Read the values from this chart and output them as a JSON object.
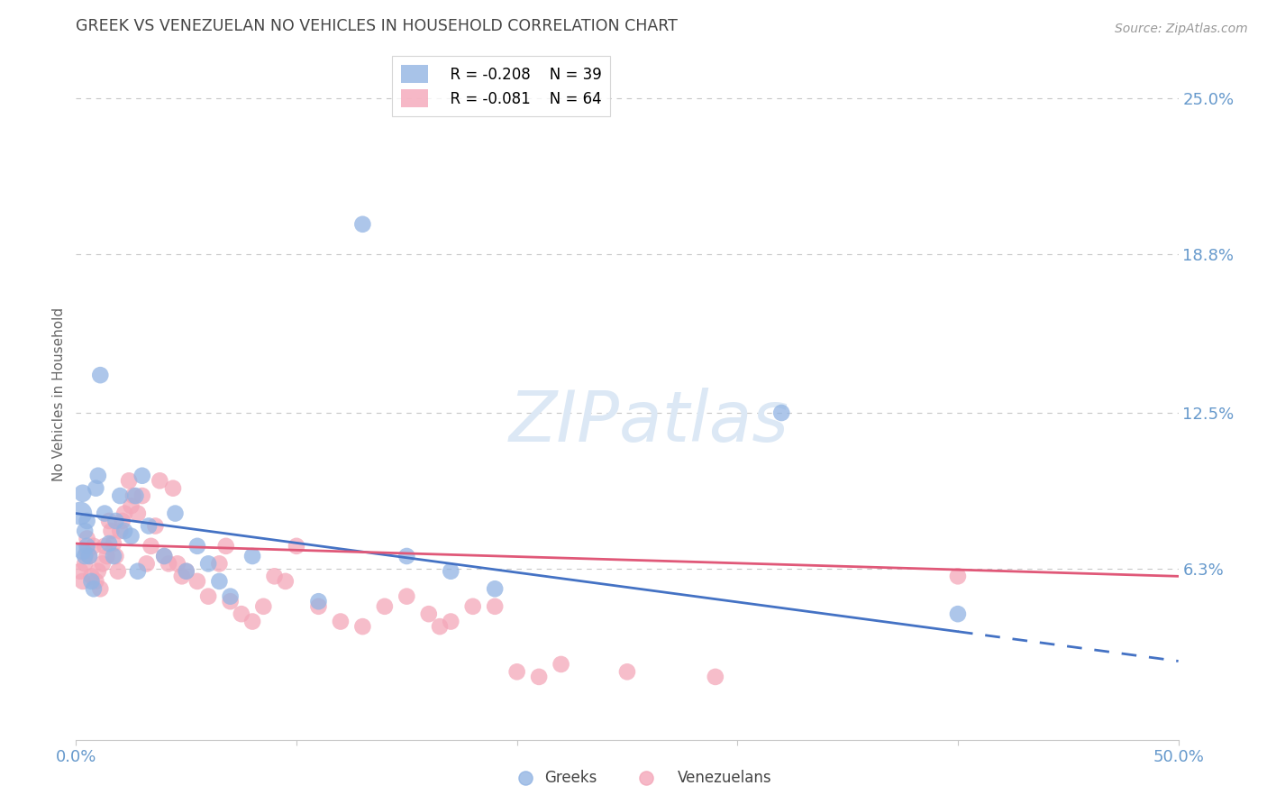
{
  "title": "GREEK VS VENEZUELAN NO VEHICLES IN HOUSEHOLD CORRELATION CHART",
  "source": "Source: ZipAtlas.com",
  "ylabel": "No Vehicles in Household",
  "xlim": [
    0.0,
    0.5
  ],
  "ylim": [
    -0.005,
    0.27
  ],
  "yticks": [
    0.0,
    0.063,
    0.125,
    0.188,
    0.25
  ],
  "ytick_labels": [
    "",
    "6.3%",
    "12.5%",
    "18.8%",
    "25.0%"
  ],
  "xtick_labels": [
    "0.0%",
    "",
    "",
    "",
    "",
    "50.0%"
  ],
  "greek_color": "#92b4e3",
  "venezuelan_color": "#f4a7b9",
  "greek_R": -0.208,
  "greek_N": 39,
  "venezuelan_R": -0.081,
  "venezuelan_N": 64,
  "legend_label_greek": "Greeks",
  "legend_label_venezuelan": "Venezuelans",
  "background_color": "#ffffff",
  "grid_color": "#c8c8c8",
  "tick_label_color": "#6699cc",
  "title_color": "#444444",
  "right_label_color": "#6699cc",
  "greek_x": [
    0.002,
    0.003,
    0.003,
    0.004,
    0.004,
    0.005,
    0.005,
    0.006,
    0.007,
    0.008,
    0.009,
    0.01,
    0.011,
    0.013,
    0.015,
    0.017,
    0.018,
    0.02,
    0.022,
    0.025,
    0.027,
    0.028,
    0.03,
    0.033,
    0.04,
    0.045,
    0.05,
    0.055,
    0.06,
    0.065,
    0.07,
    0.08,
    0.11,
    0.13,
    0.15,
    0.17,
    0.19,
    0.32,
    0.4
  ],
  "greek_y": [
    0.085,
    0.093,
    0.07,
    0.068,
    0.078,
    0.082,
    0.072,
    0.068,
    0.058,
    0.055,
    0.095,
    0.1,
    0.14,
    0.085,
    0.073,
    0.068,
    0.082,
    0.092,
    0.078,
    0.076,
    0.092,
    0.062,
    0.1,
    0.08,
    0.068,
    0.085,
    0.062,
    0.072,
    0.065,
    0.058,
    0.052,
    0.068,
    0.05,
    0.2,
    0.068,
    0.062,
    0.055,
    0.125,
    0.045
  ],
  "greek_sizes": [
    350,
    200,
    200,
    180,
    180,
    180,
    180,
    180,
    180,
    180,
    180,
    180,
    180,
    180,
    180,
    180,
    180,
    180,
    180,
    180,
    180,
    180,
    180,
    180,
    180,
    180,
    180,
    180,
    180,
    180,
    180,
    180,
    180,
    180,
    180,
    180,
    180,
    180,
    180
  ],
  "venezuelan_x": [
    0.002,
    0.003,
    0.004,
    0.005,
    0.005,
    0.006,
    0.007,
    0.008,
    0.009,
    0.01,
    0.011,
    0.012,
    0.013,
    0.014,
    0.015,
    0.016,
    0.017,
    0.018,
    0.019,
    0.02,
    0.021,
    0.022,
    0.024,
    0.025,
    0.026,
    0.028,
    0.03,
    0.032,
    0.034,
    0.036,
    0.038,
    0.04,
    0.042,
    0.044,
    0.046,
    0.048,
    0.05,
    0.055,
    0.06,
    0.065,
    0.068,
    0.07,
    0.075,
    0.08,
    0.085,
    0.09,
    0.095,
    0.1,
    0.11,
    0.12,
    0.13,
    0.14,
    0.15,
    0.16,
    0.165,
    0.17,
    0.18,
    0.19,
    0.2,
    0.21,
    0.22,
    0.25,
    0.29,
    0.4
  ],
  "venezuelan_y": [
    0.062,
    0.058,
    0.065,
    0.07,
    0.075,
    0.068,
    0.06,
    0.072,
    0.058,
    0.062,
    0.055,
    0.065,
    0.072,
    0.068,
    0.082,
    0.078,
    0.073,
    0.068,
    0.062,
    0.078,
    0.082,
    0.085,
    0.098,
    0.088,
    0.092,
    0.085,
    0.092,
    0.065,
    0.072,
    0.08,
    0.098,
    0.068,
    0.065,
    0.095,
    0.065,
    0.06,
    0.062,
    0.058,
    0.052,
    0.065,
    0.072,
    0.05,
    0.045,
    0.042,
    0.048,
    0.06,
    0.058,
    0.072,
    0.048,
    0.042,
    0.04,
    0.048,
    0.052,
    0.045,
    0.04,
    0.042,
    0.048,
    0.048,
    0.022,
    0.02,
    0.025,
    0.022,
    0.02,
    0.06
  ],
  "venezuelan_sizes": [
    180,
    180,
    180,
    180,
    180,
    180,
    180,
    180,
    180,
    180,
    180,
    180,
    180,
    180,
    180,
    180,
    180,
    180,
    180,
    180,
    180,
    180,
    180,
    180,
    180,
    180,
    180,
    180,
    180,
    180,
    180,
    180,
    180,
    180,
    180,
    180,
    180,
    180,
    180,
    180,
    180,
    180,
    180,
    180,
    180,
    180,
    180,
    180,
    180,
    180,
    180,
    180,
    180,
    180,
    180,
    180,
    180,
    180,
    180,
    180,
    180,
    180,
    180,
    180
  ],
  "greek_line_color": "#4472c4",
  "venezuelan_line_color": "#e05878",
  "greek_line_start_x": 0.0,
  "greek_line_end_solid_x": 0.4,
  "greek_line_end_dash_x": 0.5,
  "greek_line_start_y": 0.085,
  "greek_line_end_y": 0.038,
  "venezuelan_line_start_x": 0.0,
  "venezuelan_line_end_x": 0.5,
  "venezuelan_line_start_y": 0.073,
  "venezuelan_line_end_y": 0.06
}
